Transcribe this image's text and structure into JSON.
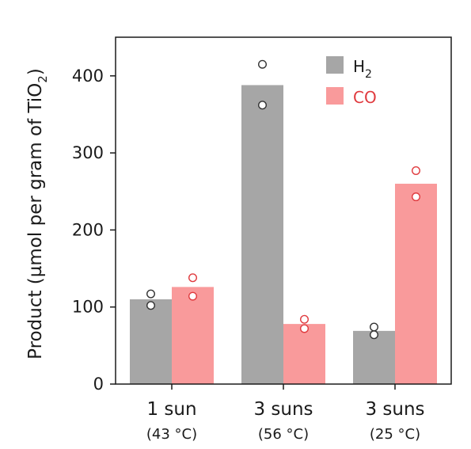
{
  "chart_data": {
    "type": "bar",
    "title": "",
    "xlabel": "",
    "ylabel_main": "Product (µmol per gram of TiO",
    "ylabel_sub": "2",
    "ylabel_close": ")",
    "ylim": [
      0,
      450
    ],
    "yticks": [
      0,
      100,
      200,
      300,
      400
    ],
    "categories": [
      {
        "line1": "1 sun",
        "line2": "(43 °C)"
      },
      {
        "line1": "3 suns",
        "line2": "(56 °C)"
      },
      {
        "line1": "3 suns",
        "line2": "(25 °C)"
      }
    ],
    "series": [
      {
        "name_main": "H",
        "name_sub": "2",
        "color": "#a6a6a6",
        "marker_edge": "#333333",
        "values": [
          110,
          388,
          69
        ],
        "points": [
          [
            117,
            102
          ],
          [
            415,
            362
          ],
          [
            74,
            64
          ]
        ]
      },
      {
        "name_main": "CO",
        "name_sub": "",
        "color": "#f99a9b",
        "marker_edge": "#e03a3e",
        "label_color": "#e03a3e",
        "values": [
          126,
          78,
          260
        ],
        "points": [
          [
            138,
            114
          ],
          [
            84,
            72
          ],
          [
            277,
            243
          ]
        ]
      }
    ],
    "legend_position": "top-right",
    "grid": false
  }
}
